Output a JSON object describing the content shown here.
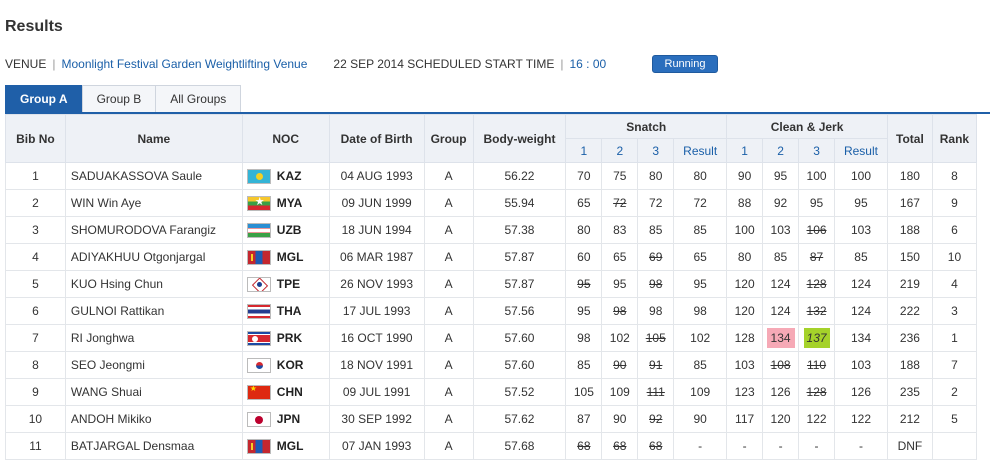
{
  "page": {
    "title": "Results"
  },
  "venue": {
    "label": "VENUE",
    "name": "Moonlight Festival Garden Weightlifting Venue",
    "schedule_text": "22 SEP 2014 SCHEDULED START TIME",
    "start_time": "16 : 00",
    "status": "Running"
  },
  "tabs": [
    {
      "label": "Group A",
      "active": true
    },
    {
      "label": "Group B",
      "active": false
    },
    {
      "label": "All Groups",
      "active": false
    }
  ],
  "headers": {
    "bib": "Bib No",
    "name": "Name",
    "noc": "NOC",
    "dob": "Date of Birth",
    "group": "Group",
    "bodyweight": "Body-weight",
    "snatch": "Snatch",
    "cj": "Clean & Jerk",
    "a1": "1",
    "a2": "2",
    "a3": "3",
    "result": "Result",
    "total": "Total",
    "rank": "Rank"
  },
  "rows": [
    {
      "bib": "1",
      "name": "SADUAKASSOVA Saule",
      "flag": "kaz",
      "noc": "KAZ",
      "dob": "04 AUG 1993",
      "group": "A",
      "bw": "56.22",
      "snatch": [
        {
          "v": "70"
        },
        {
          "v": "75"
        },
        {
          "v": "80"
        }
      ],
      "snatch_result": "80",
      "cj": [
        {
          "v": "90"
        },
        {
          "v": "95"
        },
        {
          "v": "100"
        }
      ],
      "cj_result": "100",
      "total": "180",
      "rank": "8"
    },
    {
      "bib": "2",
      "name": "WIN Win Aye",
      "flag": "mya",
      "noc": "MYA",
      "dob": "09 JUN 1999",
      "group": "A",
      "bw": "55.94",
      "snatch": [
        {
          "v": "65"
        },
        {
          "v": "72",
          "fail": true
        },
        {
          "v": "72"
        }
      ],
      "snatch_result": "72",
      "cj": [
        {
          "v": "88"
        },
        {
          "v": "92"
        },
        {
          "v": "95"
        }
      ],
      "cj_result": "95",
      "total": "167",
      "rank": "9"
    },
    {
      "bib": "3",
      "name": "SHOMURODOVA Farangiz",
      "flag": "uzb",
      "noc": "UZB",
      "dob": "18 JUN 1994",
      "group": "A",
      "bw": "57.38",
      "snatch": [
        {
          "v": "80"
        },
        {
          "v": "83"
        },
        {
          "v": "85"
        }
      ],
      "snatch_result": "85",
      "cj": [
        {
          "v": "100"
        },
        {
          "v": "103"
        },
        {
          "v": "106",
          "fail": true
        }
      ],
      "cj_result": "103",
      "total": "188",
      "rank": "6"
    },
    {
      "bib": "4",
      "name": "ADIYAKHUU Otgonjargal",
      "flag": "mgl",
      "noc": "MGL",
      "dob": "06 MAR 1987",
      "group": "A",
      "bw": "57.87",
      "snatch": [
        {
          "v": "60"
        },
        {
          "v": "65"
        },
        {
          "v": "69",
          "fail": true
        }
      ],
      "snatch_result": "65",
      "cj": [
        {
          "v": "80"
        },
        {
          "v": "85"
        },
        {
          "v": "87",
          "fail": true
        }
      ],
      "cj_result": "85",
      "total": "150",
      "rank": "10"
    },
    {
      "bib": "5",
      "name": "KUO Hsing Chun",
      "flag": "tpe",
      "noc": "TPE",
      "dob": "26 NOV 1993",
      "group": "A",
      "bw": "57.87",
      "snatch": [
        {
          "v": "95",
          "fail": true
        },
        {
          "v": "95"
        },
        {
          "v": "98",
          "fail": true
        }
      ],
      "snatch_result": "95",
      "cj": [
        {
          "v": "120"
        },
        {
          "v": "124"
        },
        {
          "v": "128",
          "fail": true
        }
      ],
      "cj_result": "124",
      "total": "219",
      "rank": "4"
    },
    {
      "bib": "6",
      "name": "GULNOI Rattikan",
      "flag": "tha",
      "noc": "THA",
      "dob": "17 JUL 1993",
      "group": "A",
      "bw": "57.56",
      "snatch": [
        {
          "v": "95"
        },
        {
          "v": "98",
          "fail": true
        },
        {
          "v": "98"
        }
      ],
      "snatch_result": "98",
      "cj": [
        {
          "v": "120"
        },
        {
          "v": "124"
        },
        {
          "v": "132",
          "fail": true
        }
      ],
      "cj_result": "124",
      "total": "222",
      "rank": "3"
    },
    {
      "bib": "7",
      "name": "RI Jonghwa",
      "flag": "prk",
      "noc": "PRK",
      "dob": "16 OCT 1990",
      "group": "A",
      "bw": "57.60",
      "snatch": [
        {
          "v": "98"
        },
        {
          "v": "102"
        },
        {
          "v": "105",
          "fail": true
        }
      ],
      "snatch_result": "102",
      "cj": [
        {
          "v": "128"
        },
        {
          "v": "134",
          "highlight": "red"
        },
        {
          "v": "137",
          "highlight": "green"
        }
      ],
      "cj_result": "134",
      "total": "236",
      "rank": "1"
    },
    {
      "bib": "8",
      "name": "SEO Jeongmi",
      "flag": "kor",
      "noc": "KOR",
      "dob": "18 NOV 1991",
      "group": "A",
      "bw": "57.60",
      "snatch": [
        {
          "v": "85"
        },
        {
          "v": "90",
          "fail": true
        },
        {
          "v": "91",
          "fail": true
        }
      ],
      "snatch_result": "85",
      "cj": [
        {
          "v": "103"
        },
        {
          "v": "108",
          "fail": true
        },
        {
          "v": "110",
          "fail": true
        }
      ],
      "cj_result": "103",
      "total": "188",
      "rank": "7"
    },
    {
      "bib": "9",
      "name": "WANG Shuai",
      "flag": "chn",
      "noc": "CHN",
      "dob": "09 JUL 1991",
      "group": "A",
      "bw": "57.52",
      "snatch": [
        {
          "v": "105"
        },
        {
          "v": "109"
        },
        {
          "v": "111",
          "fail": true
        }
      ],
      "snatch_result": "109",
      "cj": [
        {
          "v": "123"
        },
        {
          "v": "126"
        },
        {
          "v": "128",
          "fail": true
        }
      ],
      "cj_result": "126",
      "total": "235",
      "rank": "2"
    },
    {
      "bib": "10",
      "name": "ANDOH Mikiko",
      "flag": "jpn",
      "noc": "JPN",
      "dob": "30 SEP 1992",
      "group": "A",
      "bw": "57.62",
      "snatch": [
        {
          "v": "87"
        },
        {
          "v": "90"
        },
        {
          "v": "92",
          "fail": true
        }
      ],
      "snatch_result": "90",
      "cj": [
        {
          "v": "117"
        },
        {
          "v": "120"
        },
        {
          "v": "122"
        }
      ],
      "cj_result": "122",
      "total": "212",
      "rank": "5"
    },
    {
      "bib": "11",
      "name": "BATJARGAL Densmaa",
      "flag": "mgl",
      "noc": "MGL",
      "dob": "07 JAN 1993",
      "group": "A",
      "bw": "57.68",
      "snatch": [
        {
          "v": "68",
          "fail": true
        },
        {
          "v": "68",
          "fail": true
        },
        {
          "v": "68",
          "fail": true
        }
      ],
      "snatch_result": "-",
      "cj": [
        {
          "v": "-"
        },
        {
          "v": "-"
        },
        {
          "v": "-"
        }
      ],
      "cj_result": "-",
      "total": "DNF",
      "rank": ""
    }
  ]
}
